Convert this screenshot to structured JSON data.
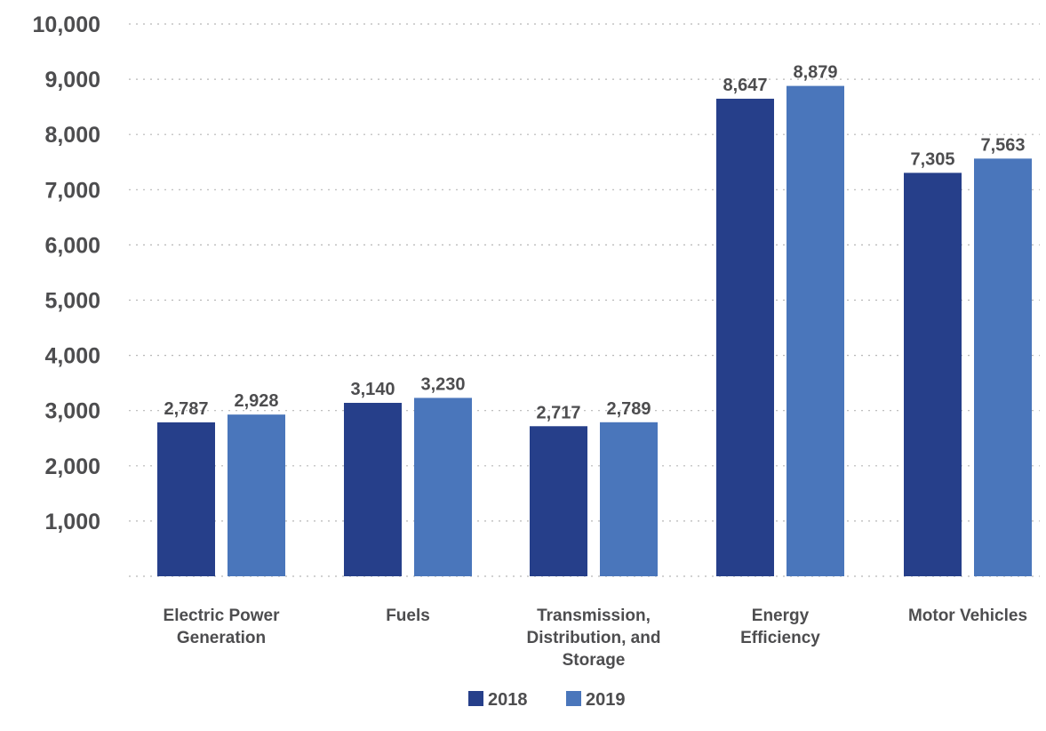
{
  "chart_data": {
    "type": "bar",
    "categories": [
      [
        "Electric Power",
        "Generation"
      ],
      [
        "Fuels"
      ],
      [
        "Transmission,",
        "Distribution, and",
        "Storage"
      ],
      [
        "Energy",
        "Efficiency"
      ],
      [
        "Motor Vehicles"
      ]
    ],
    "series": [
      {
        "name": "2018",
        "color": "#263f8a",
        "values": [
          2787,
          3140,
          2717,
          8647,
          7305
        ],
        "labels": [
          "2,787",
          "3,140",
          "2,717",
          "8,647",
          "7,305"
        ]
      },
      {
        "name": "2019",
        "color": "#4a76bb",
        "values": [
          2928,
          3230,
          2789,
          8879,
          7563
        ],
        "labels": [
          "2,928",
          "3,230",
          "2,789",
          "8,879",
          "7,563"
        ]
      }
    ],
    "ylim": [
      0,
      10000
    ],
    "yticks": [
      {
        "value": 1000,
        "label": "1,000"
      },
      {
        "value": 2000,
        "label": "2,000"
      },
      {
        "value": 3000,
        "label": "3,000"
      },
      {
        "value": 4000,
        "label": "4,000"
      },
      {
        "value": 5000,
        "label": "5,000"
      },
      {
        "value": 6000,
        "label": "6,000"
      },
      {
        "value": 7000,
        "label": "7,000"
      },
      {
        "value": 8000,
        "label": "8,000"
      },
      {
        "value": 9000,
        "label": "9,000"
      },
      {
        "value": 10000,
        "label": "10,000"
      }
    ],
    "grid": true,
    "legend_position": "bottom-center",
    "title": "",
    "xlabel": "",
    "ylabel": ""
  }
}
